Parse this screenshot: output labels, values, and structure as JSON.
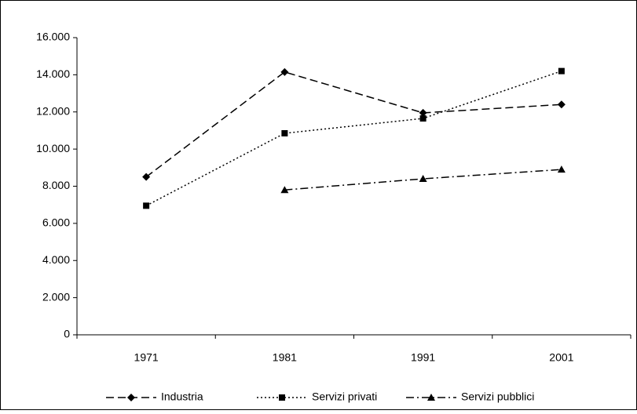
{
  "chart_data": {
    "type": "line",
    "categories": [
      "1971",
      "1981",
      "1991",
      "2001"
    ],
    "series": [
      {
        "name": "Industria",
        "color": "#000000",
        "dash": "10,5",
        "marker": "diamond",
        "values": [
          8500,
          14150,
          11950,
          12400
        ]
      },
      {
        "name": "Servizi privati",
        "color": "#000000",
        "dash": "2,3",
        "marker": "square",
        "values": [
          6950,
          10850,
          11650,
          14200
        ]
      },
      {
        "name": "Servizi pubblici",
        "color": "#000000",
        "dash": "10,4,2,4",
        "marker": "triangle",
        "values": [
          null,
          7800,
          8400,
          8900
        ]
      }
    ],
    "ylim": [
      0,
      16000
    ],
    "yticks": [
      0,
      {
        "value": 2000,
        "label": "2.000"
      },
      {
        "value": 4000,
        "label": "4.000"
      },
      {
        "value": 6000,
        "label": "6.000"
      },
      {
        "value": 8000,
        "label": "8.000"
      },
      {
        "value": 10000,
        "label": "10.000"
      },
      {
        "value": 12000,
        "label": "12.000"
      },
      {
        "value": 14000,
        "label": "14.000"
      },
      {
        "value": 16000,
        "label": "16.000"
      }
    ],
    "grid": false,
    "legend": "bottom"
  }
}
